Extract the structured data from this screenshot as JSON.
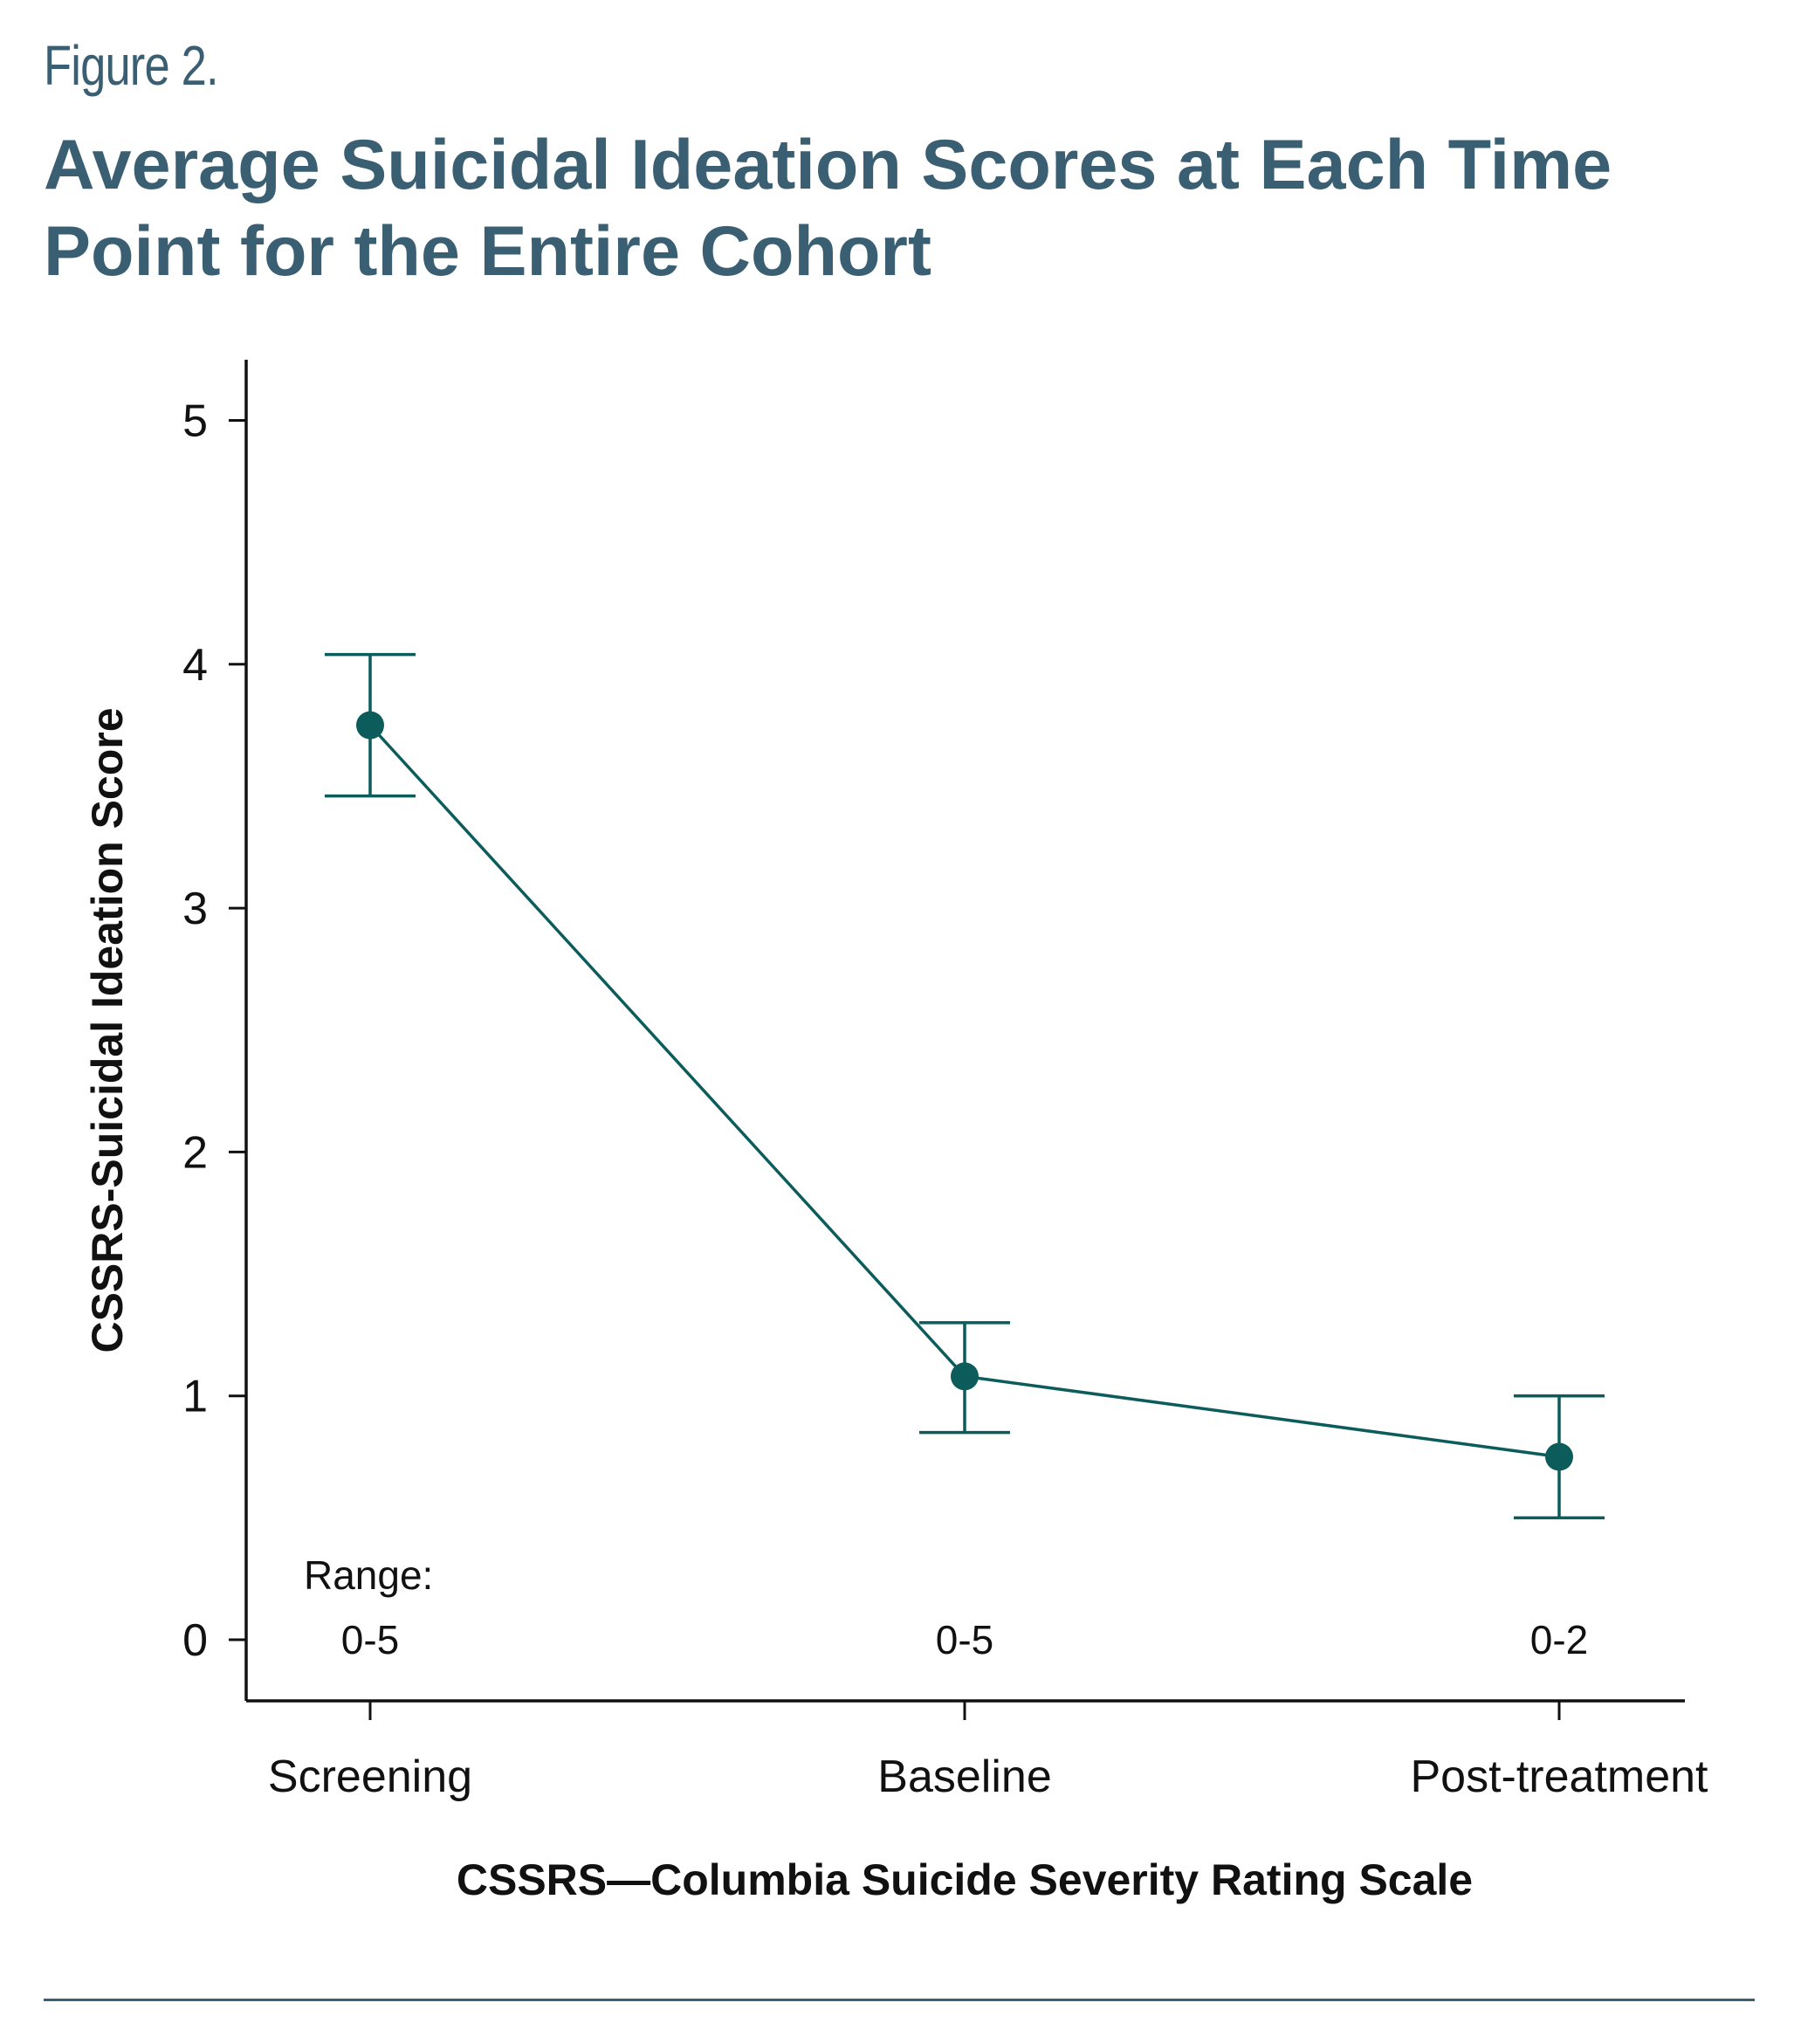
{
  "figure_label": "Figure 2.",
  "title": "Average Suicidal Ideation Scores at Each Time Point for the Entire Cohort",
  "colors": {
    "heading": "#3a5f73",
    "series": "#0d5c5c",
    "axis": "#111111"
  },
  "chart_data": {
    "type": "line",
    "title": "Average Suicidal Ideation Scores at Each Time Point for the Entire Cohort",
    "xlabel": "CSSRS—Columbia Suicide Severity Rating Scale",
    "ylabel": "CSSRS-Suicidal Ideation Score",
    "categories": [
      "Screening",
      "Baseline",
      "Post-treatment"
    ],
    "ylim": [
      -0.25,
      5.25
    ],
    "yticks": [
      0,
      1,
      2,
      3,
      4,
      5
    ],
    "grid": false,
    "series": [
      {
        "values": [
          3.75,
          1.08,
          0.75
        ],
        "error_low": [
          3.46,
          0.85,
          0.5
        ],
        "error_high": [
          4.04,
          1.3,
          1.0
        ]
      }
    ],
    "range_label": "Range:",
    "ranges": [
      "0-5",
      "0-5",
      "0-2"
    ]
  }
}
